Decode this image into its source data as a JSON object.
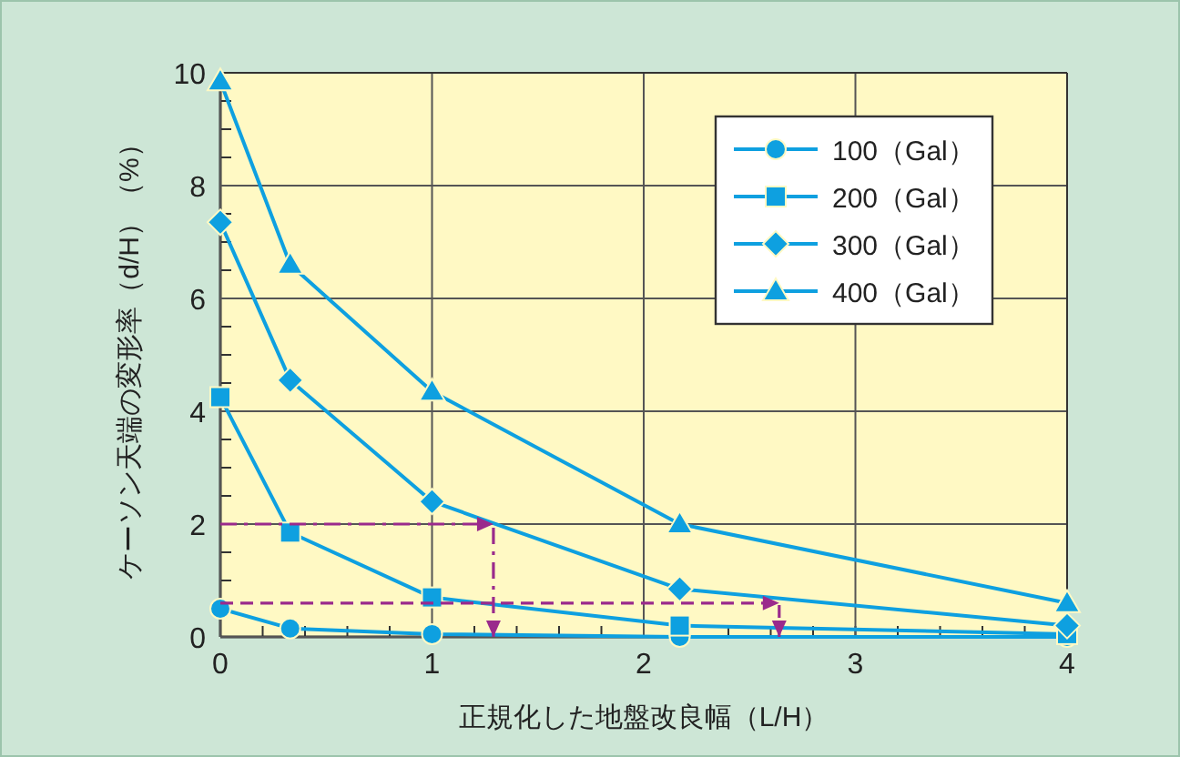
{
  "chart_data": {
    "type": "line",
    "xlabel": "正規化した地盤改良幅（L/H）",
    "ylabel": "ケーソン天端の変形率（d/H）（%）",
    "xlim": [
      0,
      4
    ],
    "ylim": [
      0,
      10
    ],
    "xticks": [
      0,
      1,
      2,
      3,
      4
    ],
    "yticks": [
      0,
      2,
      4,
      6,
      8,
      10
    ],
    "grid": true,
    "legend": "top right",
    "x": [
      0,
      0.33,
      1,
      2.17,
      4
    ],
    "series": [
      {
        "name": "100（Gal）",
        "color": "#0ea0e0",
        "marker": "circle",
        "values": [
          0.5,
          0.15,
          0.05,
          0,
          0
        ]
      },
      {
        "name": "200（Gal）",
        "color": "#0ea0e0",
        "marker": "square",
        "values": [
          4.25,
          1.85,
          0.7,
          0.2,
          0.05
        ]
      },
      {
        "name": "300（Gal）",
        "color": "#0ea0e0",
        "marker": "diamond",
        "values": [
          7.35,
          4.55,
          2.4,
          0.85,
          0.2
        ]
      },
      {
        "name": "400（Gal）",
        "color": "#0ea0e0",
        "marker": "triangle",
        "values": [
          9.85,
          6.6,
          4.35,
          2.0,
          0.6
        ]
      }
    ]
  }
}
